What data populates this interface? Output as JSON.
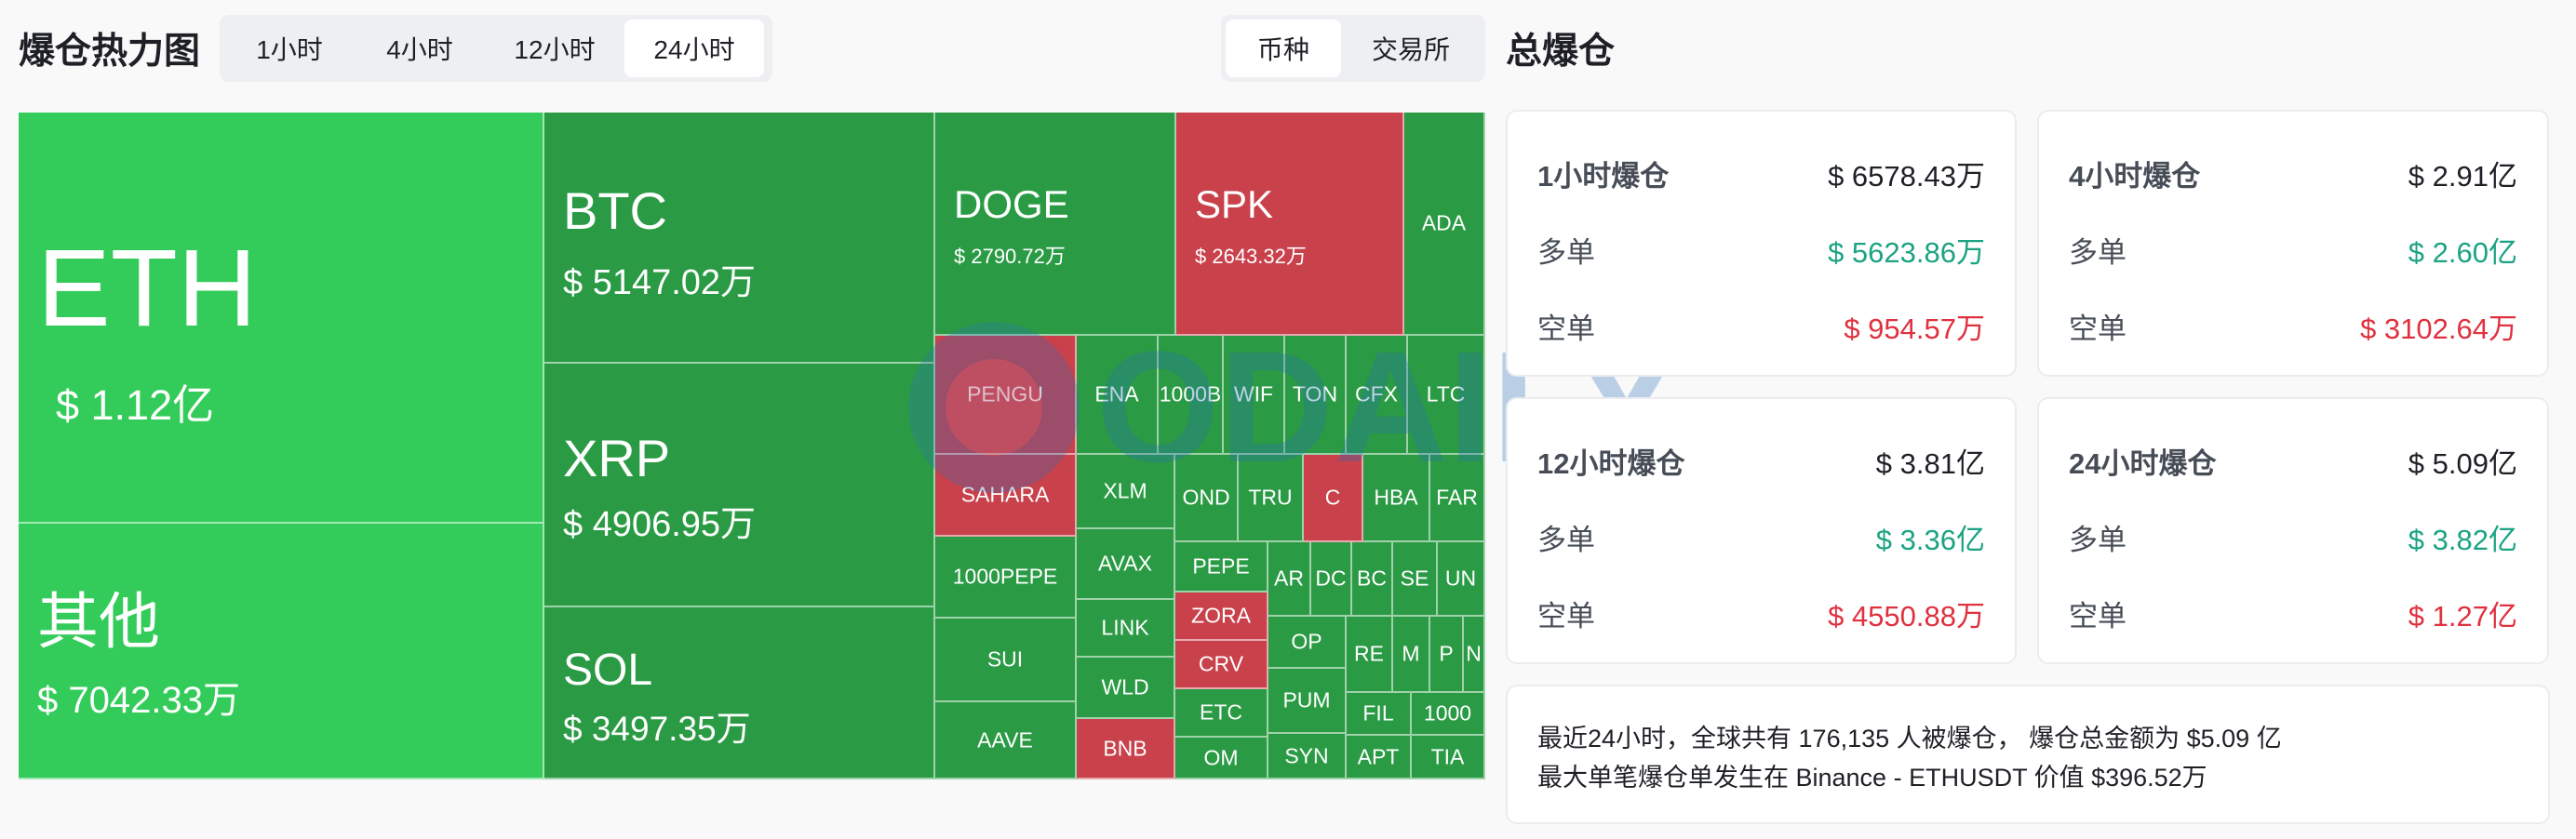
{
  "header": {
    "title": "爆仓热力图",
    "time_tabs": [
      "1小时",
      "4小时",
      "12小时",
      "24小时"
    ],
    "active_time": "24小时",
    "group_tabs": [
      "币种",
      "交易所"
    ],
    "active_group": "币种",
    "total_title": "总爆仓"
  },
  "heatmap": {
    "eth": {
      "symbol": "ETH",
      "value": "$ 1.12亿"
    },
    "other": {
      "symbol": "其他",
      "value": "$ 7042.33万"
    },
    "btc": {
      "symbol": "BTC",
      "value": "$ 5147.02万"
    },
    "xrp": {
      "symbol": "XRP",
      "value": "$ 4906.95万"
    },
    "sol": {
      "symbol": "SOL",
      "value": "$ 3497.35万"
    },
    "doge": {
      "symbol": "DOGE",
      "value": "$ 2790.72万"
    },
    "spk": {
      "symbol": "SPK",
      "value": "$ 2643.32万"
    },
    "small": [
      "ADA",
      "PENGU",
      "ENA",
      "1000B",
      "WIF",
      "TON",
      "CFX",
      "LTC",
      "SAHARA",
      "XLM",
      "OND",
      "TRU",
      "C",
      "HBA",
      "FAR",
      "1000PEPE",
      "AVAX",
      "PEPE",
      "AR",
      "DC",
      "BC",
      "SE",
      "UN",
      "LINK",
      "ZORA",
      "OP",
      "RE",
      "M",
      "P",
      "N",
      "SUI",
      "WLD",
      "CRV",
      "PUM",
      "FIL",
      "1000",
      "AAVE",
      "BNB",
      "ETC",
      "SYN",
      "APT",
      "TIA",
      "OM"
    ]
  },
  "stats": {
    "h1": {
      "title": "1小时爆仓",
      "total": "$ 6578.43万",
      "long_label": "多单",
      "long": "$ 5623.86万",
      "short_label": "空单",
      "short": "$ 954.57万"
    },
    "h4": {
      "title": "4小时爆仓",
      "total": "$ 2.91亿",
      "long_label": "多单",
      "long": "$ 2.60亿",
      "short_label": "空单",
      "short": "$ 3102.64万"
    },
    "h12": {
      "title": "12小时爆仓",
      "total": "$ 3.81亿",
      "long_label": "多单",
      "long": "$ 3.36亿",
      "short_label": "空单",
      "short": "$ 4550.88万"
    },
    "h24": {
      "title": "24小时爆仓",
      "total": "$ 5.09亿",
      "long_label": "多单",
      "long": "$ 3.82亿",
      "short_label": "空单",
      "short": "$ 1.27亿"
    }
  },
  "note": {
    "line1": "最近24小时，全球共有 176,135 人被爆仓， 爆仓总金额为 $5.09 亿",
    "line2": "最大单笔爆仓单发生在 Binance - ETHUSDT 价值 $396.52万"
  },
  "watermark": "ODAILY",
  "colors": {
    "long": "#1ba383",
    "short": "#e0313f",
    "tile_green": "#2ea84a",
    "tile_red": "#c8414b"
  }
}
